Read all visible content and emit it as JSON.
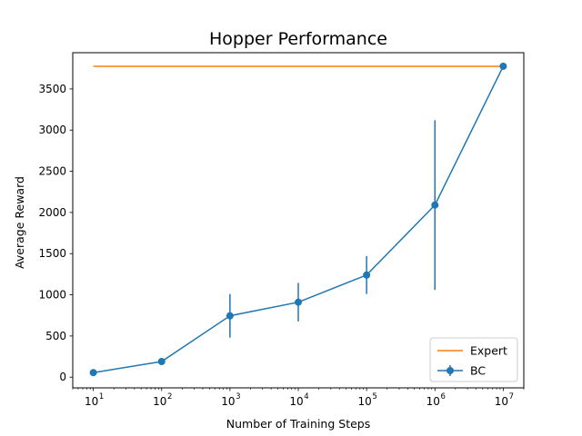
{
  "chart_data": {
    "type": "line",
    "title": "Hopper Performance",
    "xlabel": "Number of Training Steps",
    "ylabel": "Average Reward",
    "xscale": "log",
    "xlim": [
      5,
      20000000
    ],
    "ylim": [
      -130,
      3940
    ],
    "x_ticks": [
      {
        "base": "10",
        "exp": "1",
        "value": 10
      },
      {
        "base": "10",
        "exp": "2",
        "value": 100
      },
      {
        "base": "10",
        "exp": "3",
        "value": 1000
      },
      {
        "base": "10",
        "exp": "4",
        "value": 10000
      },
      {
        "base": "10",
        "exp": "5",
        "value": 100000
      },
      {
        "base": "10",
        "exp": "6",
        "value": 1000000
      },
      {
        "base": "10",
        "exp": "7",
        "value": 10000000
      }
    ],
    "y_ticks": [
      "0",
      "500",
      "1000",
      "1500",
      "2000",
      "2500",
      "3000",
      "3500"
    ],
    "grid": false,
    "legend_position": "bottom-right",
    "series": [
      {
        "name": "Expert",
        "kind": "line",
        "color": "#ff7f0e",
        "x": [
          10,
          10000000
        ],
        "y": [
          3775,
          3775
        ]
      },
      {
        "name": "BC",
        "kind": "errorbar",
        "color": "#1f77b4",
        "x": [
          10,
          100,
          1000,
          10000,
          100000,
          1000000,
          10000000
        ],
        "y": [
          55,
          190,
          745,
          910,
          1240,
          2090,
          3775
        ],
        "yerr": [
          0,
          0,
          265,
          235,
          230,
          1030,
          0
        ]
      }
    ]
  }
}
